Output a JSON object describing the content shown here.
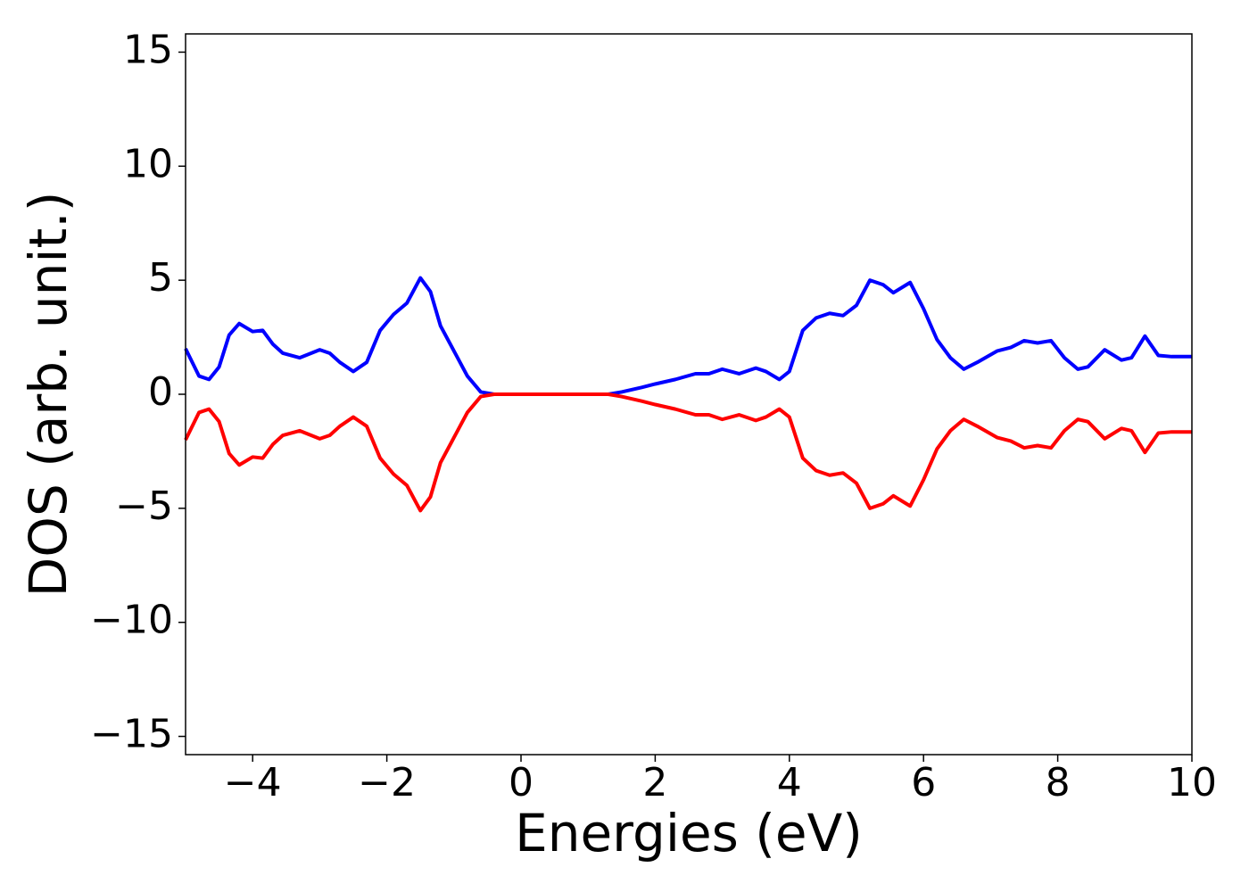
{
  "chart_data": {
    "type": "line",
    "xlabel": "Energies (eV)",
    "ylabel": "DOS (arb. unit.)",
    "x": [
      -5,
      -4.8,
      -4.65,
      -4.5,
      -4.35,
      -4.2,
      -4.0,
      -3.85,
      -3.7,
      -3.55,
      -3.3,
      -3.0,
      -2.85,
      -2.7,
      -2.5,
      -2.3,
      -2.1,
      -1.9,
      -1.7,
      -1.5,
      -1.35,
      -1.2,
      -1.0,
      -0.8,
      -0.6,
      -0.4,
      0,
      0.5,
      1.0,
      1.3,
      1.5,
      1.8,
      2.0,
      2.3,
      2.6,
      2.8,
      3.0,
      3.25,
      3.5,
      3.65,
      3.85,
      4.0,
      4.2,
      4.4,
      4.6,
      4.8,
      5.0,
      5.2,
      5.4,
      5.55,
      5.8,
      6.0,
      6.2,
      6.4,
      6.6,
      6.8,
      7.1,
      7.3,
      7.5,
      7.7,
      7.9,
      8.1,
      8.3,
      8.45,
      8.7,
      8.95,
      9.1,
      9.3,
      9.5,
      9.7,
      10
    ],
    "series": [
      {
        "color": "#0000ff",
        "values": [
          2.0,
          0.8,
          0.65,
          1.2,
          2.6,
          3.1,
          2.75,
          2.8,
          2.2,
          1.8,
          1.6,
          1.95,
          1.8,
          1.4,
          1.0,
          1.4,
          2.8,
          3.5,
          4.0,
          5.1,
          4.5,
          3.0,
          1.9,
          0.8,
          0.1,
          0,
          0,
          0,
          0,
          0,
          0.1,
          0.3,
          0.45,
          0.65,
          0.9,
          0.9,
          1.1,
          0.9,
          1.15,
          1.0,
          0.65,
          1.0,
          2.8,
          3.35,
          3.55,
          3.45,
          3.9,
          5.0,
          4.8,
          4.45,
          4.9,
          3.75,
          2.4,
          1.6,
          1.1,
          1.4,
          1.9,
          2.05,
          2.35,
          2.25,
          2.35,
          1.6,
          1.1,
          1.2,
          1.95,
          1.5,
          1.6,
          2.55,
          1.7,
          1.65,
          1.65
        ]
      },
      {
        "color": "#ff0000",
        "values": [
          -2.0,
          -0.8,
          -0.65,
          -1.2,
          -2.6,
          -3.1,
          -2.75,
          -2.8,
          -2.2,
          -1.8,
          -1.6,
          -1.95,
          -1.8,
          -1.4,
          -1.0,
          -1.4,
          -2.8,
          -3.5,
          -4.0,
          -5.1,
          -4.5,
          -3.0,
          -1.9,
          -0.8,
          -0.1,
          0,
          0,
          0,
          0,
          0,
          -0.1,
          -0.3,
          -0.45,
          -0.65,
          -0.9,
          -0.9,
          -1.1,
          -0.9,
          -1.15,
          -1.0,
          -0.65,
          -1.0,
          -2.8,
          -3.35,
          -3.55,
          -3.45,
          -3.9,
          -5.0,
          -4.8,
          -4.45,
          -4.9,
          -3.75,
          -2.4,
          -1.6,
          -1.1,
          -1.4,
          -1.9,
          -2.05,
          -2.35,
          -2.25,
          -2.35,
          -1.6,
          -1.1,
          -1.2,
          -1.95,
          -1.5,
          -1.6,
          -2.55,
          -1.7,
          -1.65,
          -1.65
        ]
      }
    ],
    "xlim": [
      -5,
      10
    ],
    "xticks": [
      {
        "value": -4,
        "label": "−4"
      },
      {
        "value": -2,
        "label": "−2"
      },
      0,
      2,
      4,
      6,
      8,
      10
    ],
    "ylim": [
      -15.8,
      15.8
    ],
    "yticks": [
      {
        "value": -15,
        "label": "−15"
      },
      {
        "value": -10,
        "label": "−10"
      },
      {
        "value": -5,
        "label": "−5"
      },
      0,
      5,
      10,
      15
    ]
  }
}
